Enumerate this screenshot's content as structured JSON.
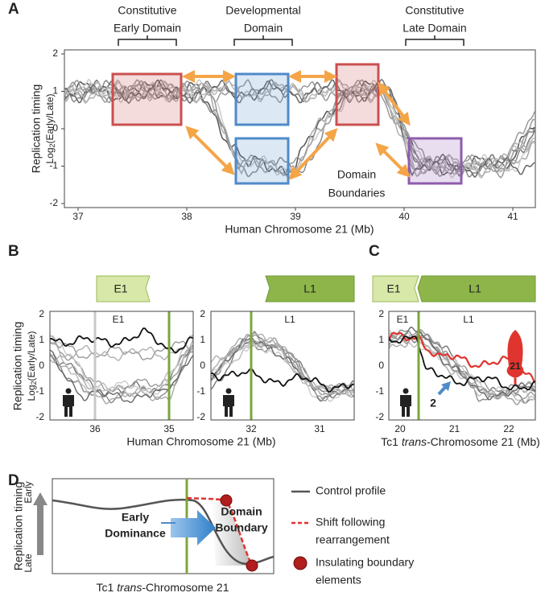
{
  "panel_a": {
    "label": "A",
    "domains": [
      [
        "Constitutive",
        "Early Domain"
      ],
      [
        "Developmental",
        "Domain"
      ],
      [
        "Constitutive",
        "Late Domain"
      ]
    ],
    "boundaries": [
      "Domain",
      "Boundaries"
    ],
    "y_title": "Replication timing",
    "y_subtitle": [
      "Log",
      "2",
      "(Early/Late)"
    ],
    "yticks": [
      2,
      1,
      0,
      -1,
      -2
    ],
    "xticks": [
      37,
      38,
      39,
      40,
      41
    ],
    "x_title": "Human Chromosome 21 (Mb)"
  },
  "panel_b": {
    "label": "B",
    "segments": [
      "E1",
      "L1"
    ],
    "plot_labels": [
      "E1",
      "L1"
    ],
    "y_title": "Replication timing",
    "y_subtitle": [
      "Log",
      "2",
      "(Early/Late)"
    ],
    "yticks": [
      2,
      1,
      0,
      -1,
      -2
    ],
    "left_xticks": [
      36,
      35
    ],
    "right_xticks": [
      32,
      31
    ],
    "x_title": "Human Chromosome 21 (Mb)"
  },
  "panel_c": {
    "label": "C",
    "segments": [
      "E1",
      "L1"
    ],
    "plot_labels": [
      "E1",
      "L1"
    ],
    "chromosome": "21",
    "arrow_label": "2",
    "yticks": [
      2,
      1,
      0,
      -1,
      -2
    ],
    "xticks": [
      20,
      21,
      22
    ],
    "x_title": [
      "Tc1 ",
      "trans",
      "-Chromosome 21 (Mb)"
    ]
  },
  "panel_d": {
    "label": "D",
    "y_title": "Replication timing",
    "early": "Early",
    "late": "Late",
    "dominance": [
      "Early",
      "Dominance"
    ],
    "boundary": [
      "Domain",
      "Boundary"
    ],
    "x_title": [
      "Tc1 ",
      "trans",
      "-Chromosome 21"
    ],
    "legend": [
      [
        "Control profile"
      ],
      [
        "Shift following",
        "rearrangement"
      ],
      [
        "Insulating boundary",
        "elements"
      ]
    ]
  }
}
